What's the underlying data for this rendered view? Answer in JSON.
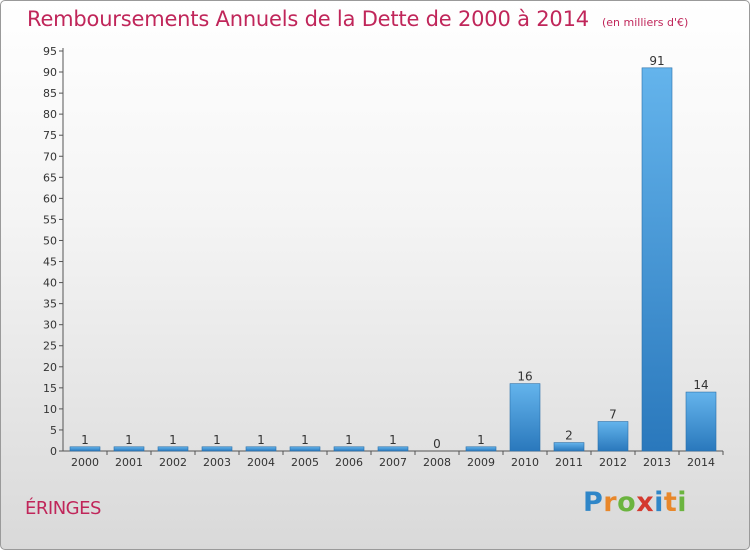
{
  "header": {
    "title": "Remboursements Annuels de la Dette de 2000 à 2014",
    "unit": "(en milliers d'€)"
  },
  "footer": {
    "place": "ÉRINGES",
    "brand": "Proxiti",
    "brand_letters": [
      "P",
      "r",
      "o",
      "x",
      "i",
      "t",
      "i"
    ],
    "brand_colors": [
      "#2f86c8",
      "#e8872a",
      "#6bb43f",
      "#d43a2f",
      "#2f86c8",
      "#e8872a",
      "#6bb43f"
    ]
  },
  "colors": {
    "accent": "#c0265a",
    "bar_top": "#64b4ec",
    "bar_bottom": "#2a78bc"
  },
  "chart_data": {
    "type": "bar",
    "categories": [
      "2000",
      "2001",
      "2002",
      "2003",
      "2004",
      "2005",
      "2006",
      "2007",
      "2008",
      "2009",
      "2010",
      "2011",
      "2012",
      "2013",
      "2014"
    ],
    "values": [
      1,
      1,
      1,
      1,
      1,
      1,
      1,
      1,
      0,
      1,
      16,
      2,
      7,
      91,
      14
    ],
    "title": "Remboursements Annuels de la Dette de 2000 à 2014",
    "ylim": [
      0,
      95
    ],
    "yticks": [
      0,
      5,
      10,
      15,
      20,
      25,
      30,
      35,
      40,
      45,
      50,
      55,
      60,
      65,
      70,
      75,
      80,
      85,
      90,
      95
    ],
    "grid": false,
    "data_labels": true
  }
}
